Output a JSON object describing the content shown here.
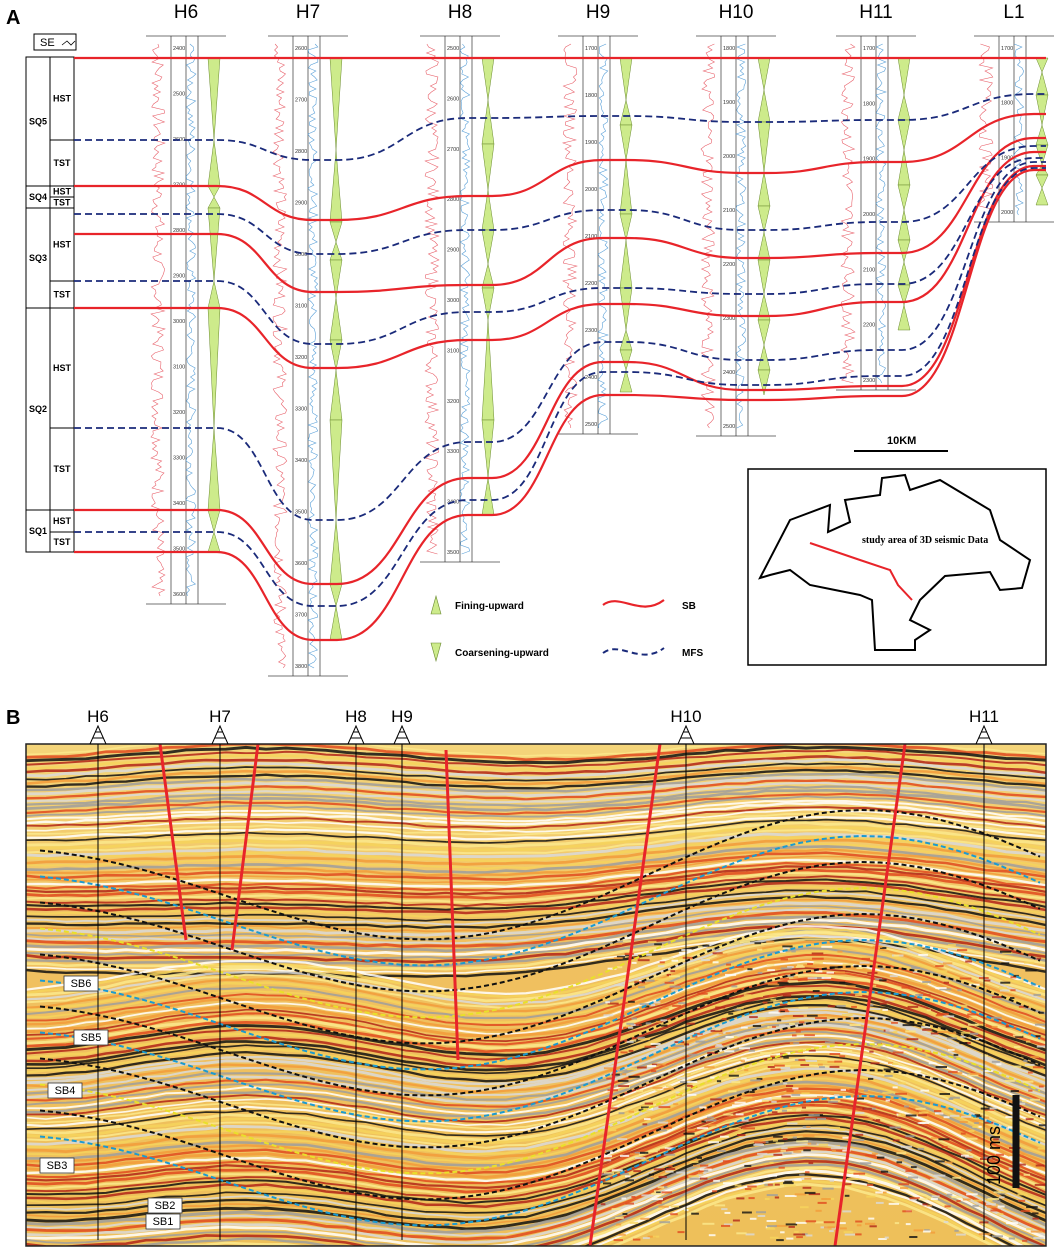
{
  "panel_a": {
    "letter": "A",
    "direction_label": "SE",
    "wells": [
      {
        "name": "H6",
        "ticks": [
          "2400",
          "2500",
          "2600",
          "2700",
          "2800",
          "2900",
          "3000",
          "3100",
          "3200",
          "3300",
          "3400",
          "3500",
          "3600"
        ]
      },
      {
        "name": "H7",
        "ticks": [
          "2600",
          "2700",
          "2800",
          "2900",
          "3000",
          "3100",
          "3200",
          "3300",
          "3400",
          "3500",
          "3600",
          "3700",
          "3800"
        ]
      },
      {
        "name": "H8",
        "ticks": [
          "2500",
          "2600",
          "2700",
          "2800",
          "2900",
          "3000",
          "3100",
          "3200",
          "3300",
          "3400",
          "3500"
        ]
      },
      {
        "name": "H9",
        "ticks": [
          "1700",
          "1800",
          "1900",
          "2000",
          "2100",
          "2200",
          "2300",
          "2400",
          "2500"
        ]
      },
      {
        "name": "H10",
        "ticks": [
          "1800",
          "1900",
          "2000",
          "2100",
          "2200",
          "2300",
          "2400",
          "2500"
        ]
      },
      {
        "name": "H11",
        "ticks": [
          "1700",
          "1800",
          "1900",
          "2000",
          "2100",
          "2200",
          "2300"
        ]
      },
      {
        "name": "L1",
        "ticks": [
          "1700",
          "1800",
          "1900",
          "2000"
        ]
      }
    ],
    "sequences": [
      {
        "name": "SQ5",
        "tracts": [
          "HST",
          "TST"
        ]
      },
      {
        "name": "SQ4",
        "tracts": [
          "HST",
          "TST"
        ]
      },
      {
        "name": "SQ3",
        "tracts": [
          "HST",
          "TST"
        ]
      },
      {
        "name": "SQ2",
        "tracts": [
          "HST",
          "TST"
        ]
      },
      {
        "name": "SQ1",
        "tracts": [
          "HST",
          "TST"
        ]
      }
    ],
    "legend": {
      "fining": "Fining-upward",
      "coarsening": "Coarsening-upward",
      "sb": "SB",
      "mfs": "MFS"
    },
    "scale_bar": "10KM",
    "map_label": "study area of 3D seismic Data",
    "colors": {
      "sb": "#e8242a",
      "mfs": "#1a2a7a",
      "triangle": "#cdeb8b"
    }
  },
  "panel_b": {
    "letter": "B",
    "wells": [
      "H6",
      "H7",
      "H8",
      "H9",
      "H10",
      "H11"
    ],
    "horizons": [
      "SB6",
      "SB5",
      "SB4",
      "SB3",
      "SB2",
      "SB1"
    ],
    "time_scale": "100 ms"
  }
}
